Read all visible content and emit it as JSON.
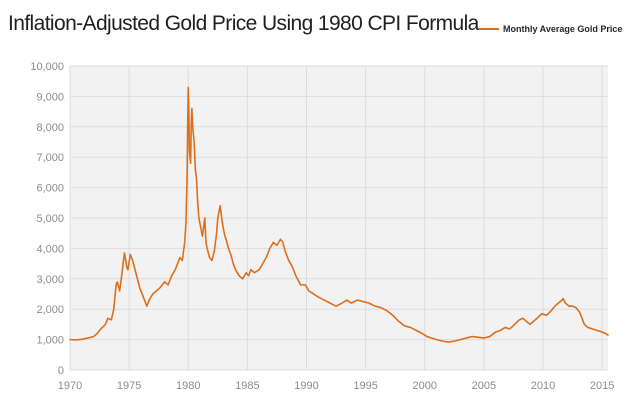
{
  "colors": {
    "series": "#dc6f1d",
    "grid": "#dcdcdc",
    "plot_bg": "#f2f2f2",
    "tick_text": "#8c8c8c",
    "title_text": "#1f1f1f"
  },
  "chart_data": {
    "type": "line",
    "title": "Inflation-Adjusted Gold Price Using 1980 CPI Formula",
    "xlabel": "",
    "ylabel": "",
    "xlim": [
      1970,
      2015.5
    ],
    "ylim": [
      0,
      10000
    ],
    "grid": true,
    "legend_position": "top-right",
    "x_ticks": [
      1970,
      1975,
      1980,
      1985,
      1990,
      1995,
      2000,
      2005,
      2010,
      2015
    ],
    "y_ticks": [
      0,
      1000,
      2000,
      3000,
      4000,
      5000,
      6000,
      7000,
      8000,
      9000,
      10000
    ],
    "x_tick_labels": [
      "1970",
      "1975",
      "1980",
      "1985",
      "1990",
      "1995",
      "2000",
      "2005",
      "2010",
      "2015"
    ],
    "y_tick_labels": [
      "0",
      "1,000",
      "2,000",
      "3,000",
      "4,000",
      "5,000",
      "6,000",
      "7,000",
      "8,000",
      "9,000",
      "10,000"
    ],
    "series": [
      {
        "name": "Monthly Average Gold Price",
        "x": [
          1970.0,
          1970.5,
          1971.0,
          1971.5,
          1972.0,
          1972.3,
          1972.6,
          1973.0,
          1973.2,
          1973.5,
          1973.7,
          1973.9,
          1974.0,
          1974.2,
          1974.4,
          1974.6,
          1974.8,
          1974.9,
          1975.1,
          1975.3,
          1975.5,
          1975.7,
          1975.9,
          1976.2,
          1976.5,
          1976.7,
          1977.0,
          1977.3,
          1977.6,
          1978.0,
          1978.3,
          1978.6,
          1978.9,
          1979.1,
          1979.3,
          1979.5,
          1979.7,
          1979.8,
          1979.9,
          1979.95,
          1980.0,
          1980.05,
          1980.1,
          1980.2,
          1980.25,
          1980.3,
          1980.4,
          1980.5,
          1980.6,
          1980.7,
          1980.8,
          1980.9,
          1981.0,
          1981.2,
          1981.4,
          1981.5,
          1981.6,
          1981.8,
          1982.0,
          1982.2,
          1982.4,
          1982.5,
          1982.7,
          1982.9,
          1983.0,
          1983.1,
          1983.2,
          1983.4,
          1983.6,
          1983.8,
          1984.0,
          1984.3,
          1984.6,
          1984.9,
          1985.1,
          1985.3,
          1985.6,
          1986.0,
          1986.3,
          1986.6,
          1986.9,
          1987.2,
          1987.5,
          1987.8,
          1988.0,
          1988.2,
          1988.5,
          1988.8,
          1989.1,
          1989.5,
          1989.9,
          1990.2,
          1990.6,
          1991.0,
          1991.5,
          1992.0,
          1992.5,
          1993.0,
          1993.4,
          1993.8,
          1994.3,
          1994.8,
          1995.3,
          1995.8,
          1996.3,
          1996.8,
          1997.3,
          1997.8,
          1998.3,
          1998.8,
          1999.3,
          1999.8,
          2000.2,
          2000.6,
          2001.0,
          2001.5,
          2002.0,
          2002.5,
          2003.0,
          2003.5,
          2004.0,
          2004.5,
          2005.0,
          2005.5,
          2006.0,
          2006.4,
          2006.8,
          2007.2,
          2007.6,
          2008.0,
          2008.3,
          2008.6,
          2008.9,
          2009.2,
          2009.5,
          2009.9,
          2010.3,
          2010.7,
          2011.0,
          2011.3,
          2011.6,
          2011.7,
          2011.9,
          2012.2,
          2012.5,
          2012.8,
          2013.1,
          2013.3,
          2013.5,
          2013.8,
          2014.2,
          2014.6,
          2015.0,
          2015.3,
          2015.5
        ],
        "y": [
          1000,
          990,
          1010,
          1050,
          1100,
          1200,
          1350,
          1500,
          1700,
          1650,
          2000,
          2800,
          2900,
          2600,
          3200,
          3850,
          3400,
          3300,
          3800,
          3600,
          3300,
          3000,
          2700,
          2400,
          2100,
          2300,
          2500,
          2600,
          2700,
          2900,
          2800,
          3100,
          3300,
          3500,
          3700,
          3600,
          4200,
          4800,
          6300,
          8000,
          9300,
          8600,
          7200,
          6800,
          8000,
          8600,
          7900,
          7500,
          6600,
          6300,
          5500,
          5000,
          4800,
          4400,
          5000,
          4200,
          4000,
          3700,
          3600,
          3900,
          4500,
          5000,
          5400,
          4800,
          4600,
          4400,
          4300,
          4000,
          3800,
          3500,
          3300,
          3100,
          3000,
          3200,
          3100,
          3300,
          3200,
          3300,
          3500,
          3700,
          4000,
          4200,
          4100,
          4300,
          4200,
          3900,
          3600,
          3400,
          3100,
          2800,
          2800,
          2600,
          2500,
          2400,
          2300,
          2200,
          2100,
          2200,
          2300,
          2200,
          2300,
          2250,
          2200,
          2100,
          2050,
          1950,
          1800,
          1600,
          1450,
          1400,
          1300,
          1200,
          1100,
          1050,
          1000,
          950,
          920,
          950,
          1000,
          1050,
          1100,
          1080,
          1050,
          1100,
          1250,
          1300,
          1400,
          1350,
          1500,
          1650,
          1700,
          1600,
          1500,
          1600,
          1700,
          1850,
          1800,
          1950,
          2100,
          2200,
          2300,
          2350,
          2200,
          2100,
          2100,
          2050,
          1900,
          1700,
          1500,
          1400,
          1350,
          1300,
          1250,
          1200,
          1150
        ]
      }
    ]
  }
}
